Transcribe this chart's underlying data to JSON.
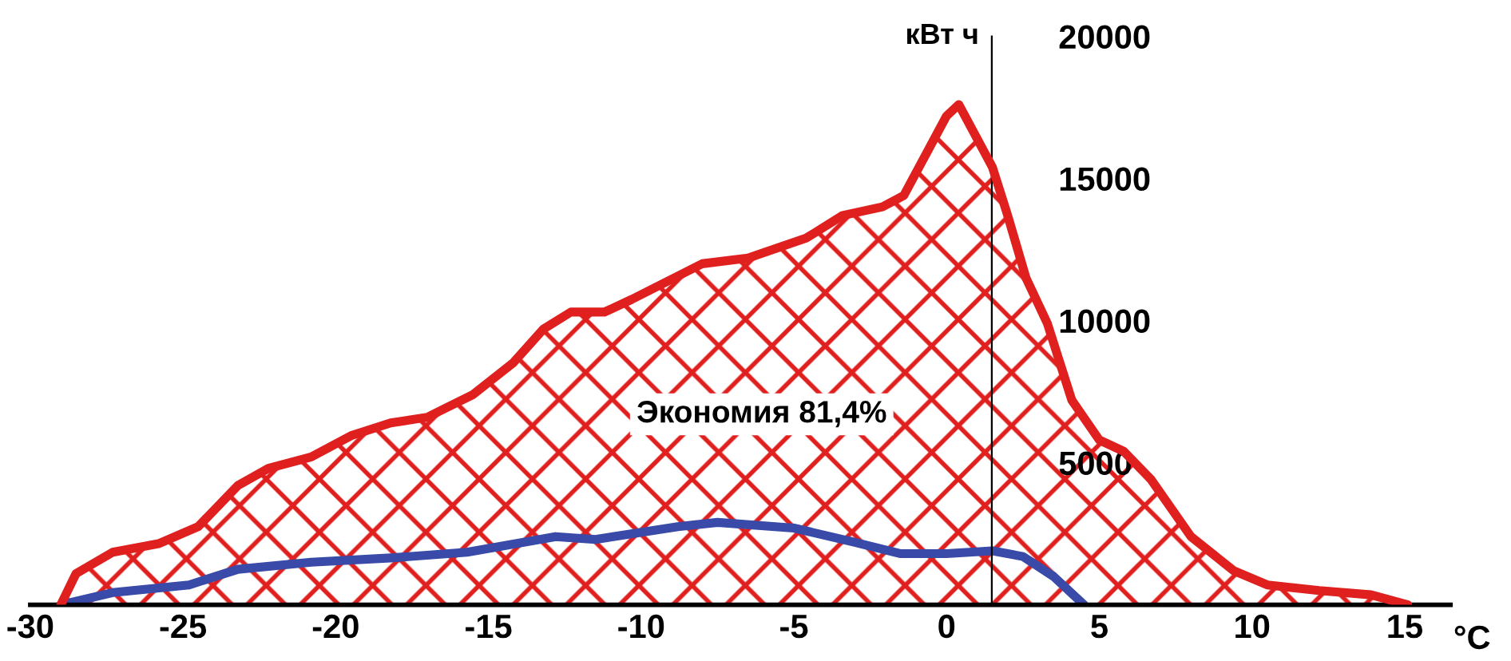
{
  "chart_data": {
    "type": "area",
    "xlabel": "°C",
    "ylabel": "кВт ч",
    "xlim": [
      -30,
      16.5
    ],
    "ylim": [
      0,
      20000
    ],
    "xticks": [
      -30,
      -25,
      -20,
      -15,
      -10,
      -5,
      0,
      5,
      10,
      15
    ],
    "yticks": [
      5000,
      10000,
      15000,
      20000
    ],
    "grid": false,
    "annotations": [
      "Экономия 81,4%"
    ],
    "series": [
      {
        "color": "#e0201f",
        "x": [
          -29,
          -28.5,
          -27.3,
          -25.8,
          -24.5,
          -23.2,
          -22.2,
          -20.8,
          -19.5,
          -18.2,
          -17,
          -15.5,
          -14.2,
          -13.2,
          -12.3,
          -11.2,
          -10.3,
          -8,
          -6.5,
          -4.6,
          -3.4,
          -2.1,
          -1.4,
          0,
          0.4,
          1.5,
          2,
          2.6,
          3.3,
          4.1,
          5,
          5.8,
          6.7,
          8,
          9.4,
          10.5,
          12.2,
          13.9,
          15.1
        ],
        "values": [
          0,
          1100,
          1850,
          2150,
          2750,
          4200,
          4800,
          5200,
          5950,
          6400,
          6600,
          7400,
          8500,
          9700,
          10300,
          10300,
          10750,
          12000,
          12200,
          12900,
          13700,
          14000,
          14400,
          17200,
          17600,
          15400,
          13700,
          11500,
          9900,
          7200,
          5800,
          5400,
          4400,
          2400,
          1200,
          700,
          500,
          350,
          0
        ]
      },
      {
        "type": "line",
        "color": "#3a4aa8",
        "x": [
          -29,
          -27.3,
          -24.8,
          -23.2,
          -20.8,
          -18.2,
          -15.7,
          -12.8,
          -11.5,
          -8.8,
          -7.5,
          -5,
          -3,
          -1.5,
          0,
          1.5,
          2.5,
          3.5,
          4.5
        ],
        "values": [
          0,
          430,
          700,
          1250,
          1500,
          1650,
          1850,
          2400,
          2300,
          2750,
          2900,
          2700,
          2200,
          1800,
          1800,
          1900,
          1700,
          1000,
          0
        ]
      }
    ]
  }
}
